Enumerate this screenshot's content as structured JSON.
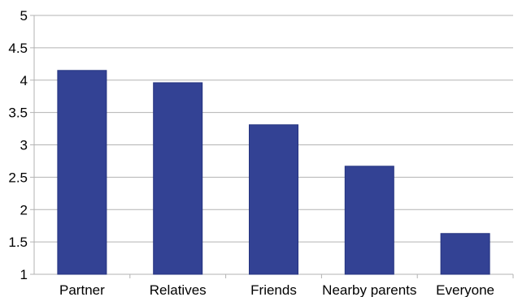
{
  "chart_data": {
    "type": "bar",
    "categories": [
      "Partner",
      "Relatives",
      "Friends",
      "Nearby parents",
      "Everyone"
    ],
    "values": [
      4.15,
      3.96,
      3.31,
      2.67,
      1.63
    ],
    "y_ticks": [
      "1",
      "1.5",
      "2",
      "2.5",
      "3",
      "3.5",
      "4",
      "4.5",
      "5"
    ],
    "title": "",
    "xlabel": "",
    "ylabel": "",
    "ylim": [
      1,
      5
    ],
    "grid": true,
    "bar_color": "#334294",
    "bar_edge_color": "#24337f",
    "grid_color": "#b3b3b3"
  }
}
